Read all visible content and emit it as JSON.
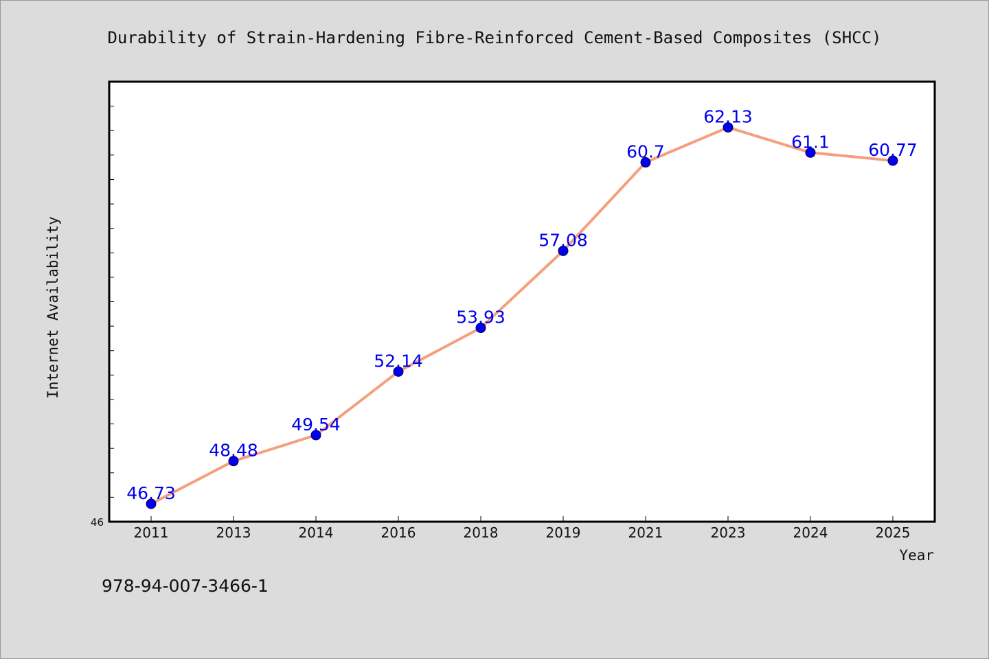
{
  "chart_data": {
    "type": "line",
    "title": "Durability of Strain-Hardening Fibre-Reinforced Cement-Based Composites (SHCC)",
    "xlabel": "Year",
    "ylabel": "Internet Availability",
    "categories": [
      "2011",
      "2013",
      "2014",
      "2016",
      "2018",
      "2019",
      "2021",
      "2023",
      "2024",
      "2025"
    ],
    "series": [
      {
        "values": [
          46.73,
          48.48,
          49.54,
          52.14,
          53.93,
          57.08,
          60.7,
          62.13,
          61.1,
          60.77
        ],
        "labels": [
          "46.73",
          "48.48",
          "49.54",
          "52.14",
          "53.93",
          "57.08",
          "60.7",
          "62.13",
          "61.1",
          "60.77"
        ]
      }
    ],
    "ylim": [
      46,
      64
    ],
    "y_tick_labels": [
      "46"
    ],
    "grid": false,
    "legend": "none",
    "colors": {
      "line": "#f4a07e",
      "marker": "#0000ee",
      "data_label": "#0000ee",
      "plot_background": "#ffffff",
      "page_background": "#dcdcdc"
    }
  },
  "footer": {
    "isbn": "978-94-007-3466-1"
  }
}
